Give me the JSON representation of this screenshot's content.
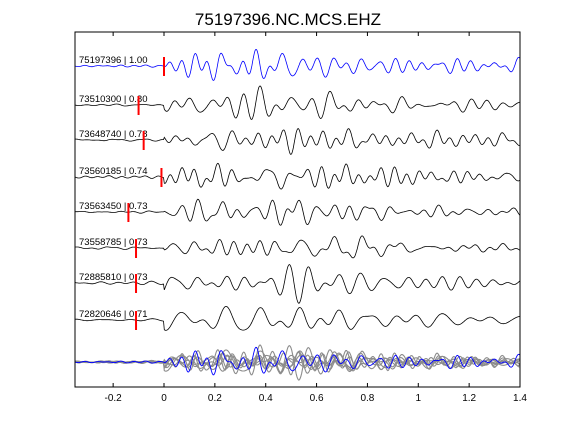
{
  "chart_data": {
    "type": "line",
    "title": "75197396.NC.MCS.EHZ",
    "xlabel": "",
    "ylabel": "",
    "xlim": [
      -0.35,
      1.4
    ],
    "xticks": [
      -0.2,
      0,
      0.2,
      0.4,
      0.6,
      0.8,
      1,
      1.2,
      1.4
    ],
    "xtick_labels": [
      "-0.2",
      "0",
      "0.2",
      "0.4",
      "0.6",
      "0.8",
      "1",
      "1.2",
      "1.4"
    ],
    "grid": false,
    "legend": "none",
    "colors": {
      "reference": "#0000ff",
      "trace": "#000000",
      "stack": "#8c8c8c",
      "pick": "#ff0000",
      "frame": "#000000"
    },
    "series": [
      {
        "name": "75197396 | 1.00",
        "event_id": "75197396",
        "cc": "1.00",
        "pick_time": 0.0,
        "color": "#0000ff"
      },
      {
        "name": "73510300 | 0.80",
        "event_id": "73510300",
        "cc": "0.80",
        "pick_time": -0.1,
        "color": "#000000"
      },
      {
        "name": "73648740 | 0.78",
        "event_id": "73648740",
        "cc": "0.78",
        "pick_time": -0.08,
        "color": "#000000"
      },
      {
        "name": "73560185 | 0.74",
        "event_id": "73560185",
        "cc": "0.74",
        "pick_time": -0.01,
        "color": "#000000"
      },
      {
        "name": "73563450 | 0.73",
        "event_id": "73563450",
        "cc": "0.73",
        "pick_time": -0.14,
        "color": "#000000"
      },
      {
        "name": "73558785 | 0.73",
        "event_id": "73558785",
        "cc": "0.73",
        "pick_time": -0.11,
        "color": "#000000"
      },
      {
        "name": "72885810 | 0.73",
        "event_id": "72885810",
        "cc": "0.73",
        "pick_time": -0.11,
        "color": "#000000"
      },
      {
        "name": "72820646 | 0.71",
        "event_id": "72820646",
        "cc": "0.71",
        "pick_time": -0.11,
        "color": "#000000"
      }
    ],
    "stack": {
      "present": true,
      "color": "#8c8c8c",
      "overlay_reference_color": "#0000ff"
    }
  }
}
